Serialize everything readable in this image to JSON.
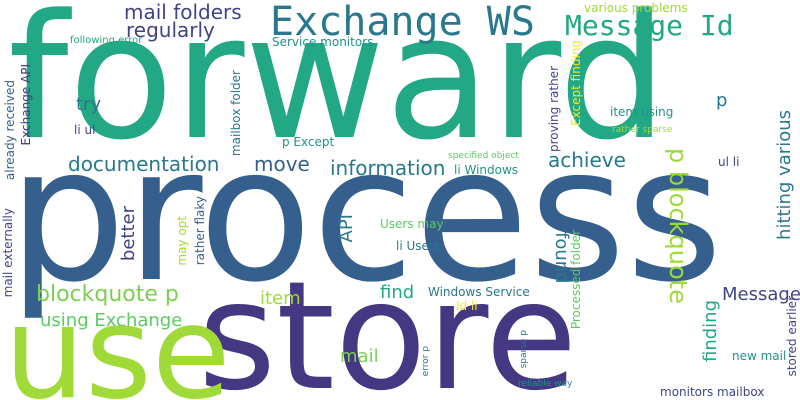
{
  "words": [
    {
      "text": "forward",
      "color": "#22a884"
    },
    {
      "text": "process",
      "color": "#355f8d"
    },
    {
      "text": "store",
      "color": "#453781"
    },
    {
      "text": "use",
      "color": "#a0da39"
    },
    {
      "text": "Exchange WS",
      "color": "#2a788e"
    },
    {
      "text": "Message Id",
      "color": "#22a884"
    },
    {
      "text": "p blockquote",
      "color": "#a0da39"
    },
    {
      "text": "mail folders",
      "color": "#414487"
    },
    {
      "text": "regularly",
      "color": "#414487"
    },
    {
      "text": "documentation",
      "color": "#2a788e"
    },
    {
      "text": "information",
      "color": "#2a788e"
    },
    {
      "text": "achieve",
      "color": "#2a788e"
    },
    {
      "text": "move",
      "color": "#355f8d"
    },
    {
      "text": "blockquote p",
      "color": "#7ad151"
    },
    {
      "text": "using Exchange",
      "color": "#5ec962"
    },
    {
      "text": "Message",
      "color": "#414487"
    },
    {
      "text": "item",
      "color": "#a0da39"
    },
    {
      "text": "try",
      "color": "#2a788e"
    },
    {
      "text": "better",
      "color": "#414487"
    },
    {
      "text": "API",
      "color": "#2a788e"
    },
    {
      "text": "find",
      "color": "#22a884"
    },
    {
      "text": "mail",
      "color": "#7ad151"
    },
    {
      "text": "found",
      "color": "#2a788e"
    },
    {
      "text": "finding",
      "color": "#22a884"
    },
    {
      "text": "hitting various",
      "color": "#2a788e"
    },
    {
      "text": "p",
      "color": "#2a788e"
    },
    {
      "text": "various problems",
      "color": "#a0da39"
    },
    {
      "text": "Service monitors",
      "color": "#21918c"
    },
    {
      "text": "following error",
      "color": "#22a884"
    },
    {
      "text": "Exchange API",
      "color": "#453781"
    },
    {
      "text": "li ul",
      "color": "#414487"
    },
    {
      "text": "already received",
      "color": "#355f8d"
    },
    {
      "text": "mail externally",
      "color": "#414487"
    },
    {
      "text": "mailbox folder",
      "color": "#2a788e"
    },
    {
      "text": "p Except",
      "color": "#21918c"
    },
    {
      "text": "item using",
      "color": "#21918c"
    },
    {
      "text": "rather sparse",
      "color": "#a0da39"
    },
    {
      "text": "specified object",
      "color": "#5ec962"
    },
    {
      "text": "li Windows",
      "color": "#21918c"
    },
    {
      "text": "Users may",
      "color": "#5ec962"
    },
    {
      "text": "li Users",
      "color": "#2a788e"
    },
    {
      "text": "Windows Service",
      "color": "#2a788e"
    },
    {
      "text": "Id li",
      "color": "#fde725"
    },
    {
      "text": "proving rather",
      "color": "#414487"
    },
    {
      "text": "Except finding",
      "color": "#fde725"
    },
    {
      "text": "Processed folder",
      "color": "#5ec962"
    },
    {
      "text": "may opt",
      "color": "#a0da39"
    },
    {
      "text": "rather flaky",
      "color": "#355f8d"
    },
    {
      "text": "ul li",
      "color": "#414487"
    },
    {
      "text": "stored earlier",
      "color": "#414487"
    },
    {
      "text": "new mail",
      "color": "#21918c"
    },
    {
      "text": "monitors mailbox",
      "color": "#414487"
    },
    {
      "text": "reliable way",
      "color": "#21918c"
    },
    {
      "text": "sparse p",
      "color": "#2a788e"
    },
    {
      "text": "error p",
      "color": "#2a788e"
    }
  ]
}
